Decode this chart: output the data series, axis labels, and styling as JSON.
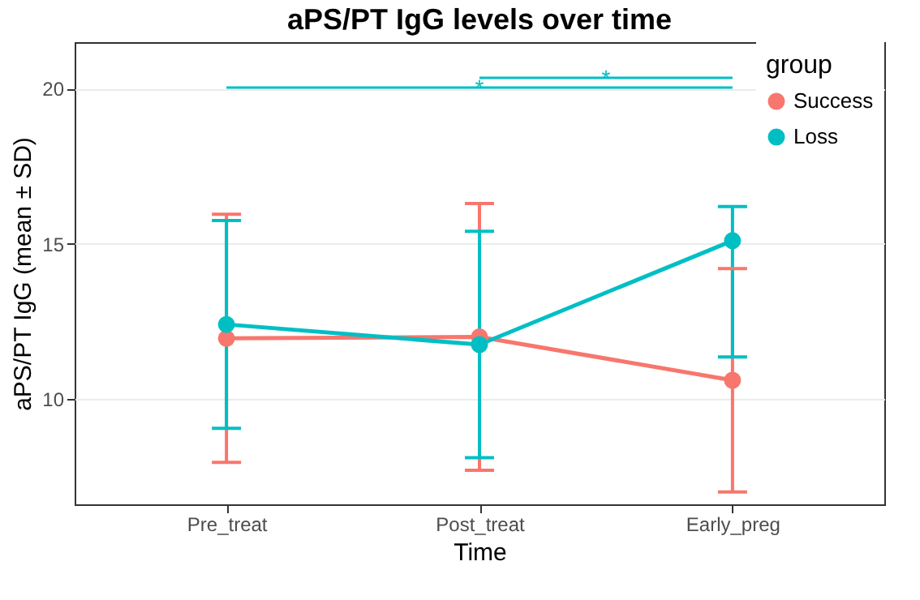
{
  "chart_data": {
    "type": "line",
    "title": "aPS/PT IgG levels over time",
    "xlabel": "Time",
    "ylabel": "aPS/PT IgG (mean ± SD)",
    "legend_title": "group",
    "categories": [
      "Pre_treat",
      "Post_treat",
      "Early_preg"
    ],
    "series": [
      {
        "name": "Success",
        "color": "#f8766d",
        "values": [
          11.95,
          12.0,
          10.6
        ],
        "errors": [
          [
            7.95,
            15.95
          ],
          [
            7.7,
            16.3
          ],
          [
            7.0,
            14.2
          ]
        ]
      },
      {
        "name": "Loss",
        "color": "#00bfc4",
        "values": [
          12.4,
          11.75,
          15.1
        ],
        "errors": [
          [
            9.05,
            15.75
          ],
          [
            8.1,
            15.4
          ],
          [
            11.35,
            16.2
          ]
        ]
      }
    ],
    "annotations": [
      "*",
      "*"
    ],
    "ylim": [
      6.6,
      21.5
    ],
    "yticks": [
      10,
      15,
      20
    ],
    "grid": "y",
    "legend": "top right",
    "marker": "circle",
    "line_style": "solid"
  }
}
